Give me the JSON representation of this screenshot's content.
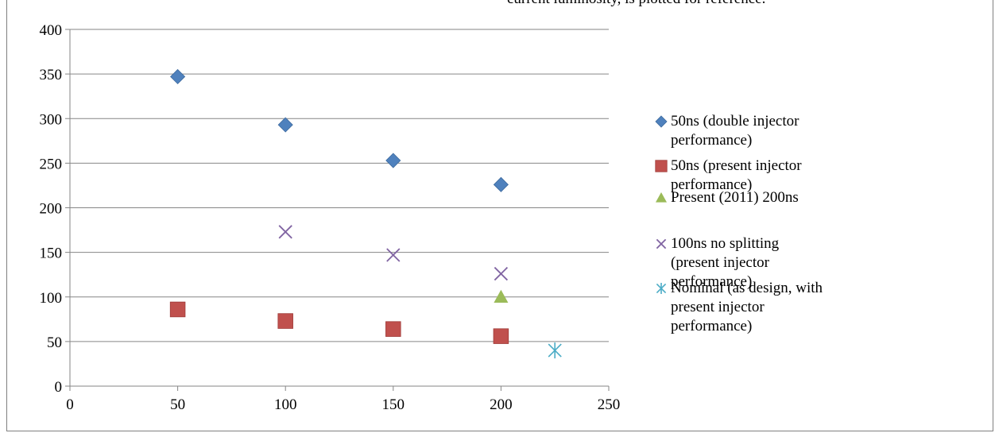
{
  "caption": "current luminosity, is plotted for reference.",
  "chart_data": {
    "type": "scatter",
    "xlim": [
      0,
      250
    ],
    "ylim": [
      0,
      400
    ],
    "xticks": [
      0,
      50,
      100,
      150,
      200,
      250
    ],
    "yticks": [
      0,
      50,
      100,
      150,
      200,
      250,
      300,
      350,
      400
    ],
    "grid": "horizontal",
    "legend_position": "right",
    "series": [
      {
        "name": "50ns (double injector performance)",
        "marker": "diamond",
        "color": "#4f81bd",
        "points": [
          [
            50,
            347
          ],
          [
            100,
            293
          ],
          [
            150,
            253
          ],
          [
            200,
            226
          ]
        ]
      },
      {
        "name": "50ns (present injector performance)",
        "marker": "square",
        "color": "#c0504d",
        "points": [
          [
            50,
            86
          ],
          [
            100,
            73
          ],
          [
            150,
            64
          ],
          [
            200,
            56
          ]
        ]
      },
      {
        "name": "Present (2011) 200ns",
        "marker": "triangle",
        "color": "#9bbb59",
        "points": [
          [
            200,
            100
          ]
        ]
      },
      {
        "name": "100ns no splitting (present injector performance)",
        "marker": "x",
        "color": "#8064a2",
        "points": [
          [
            100,
            173
          ],
          [
            150,
            147
          ],
          [
            200,
            126
          ]
        ]
      },
      {
        "name": "Nominal (as design, with present injector performance)",
        "marker": "star",
        "color": "#4bacc6",
        "points": [
          [
            225,
            40
          ]
        ]
      }
    ]
  }
}
